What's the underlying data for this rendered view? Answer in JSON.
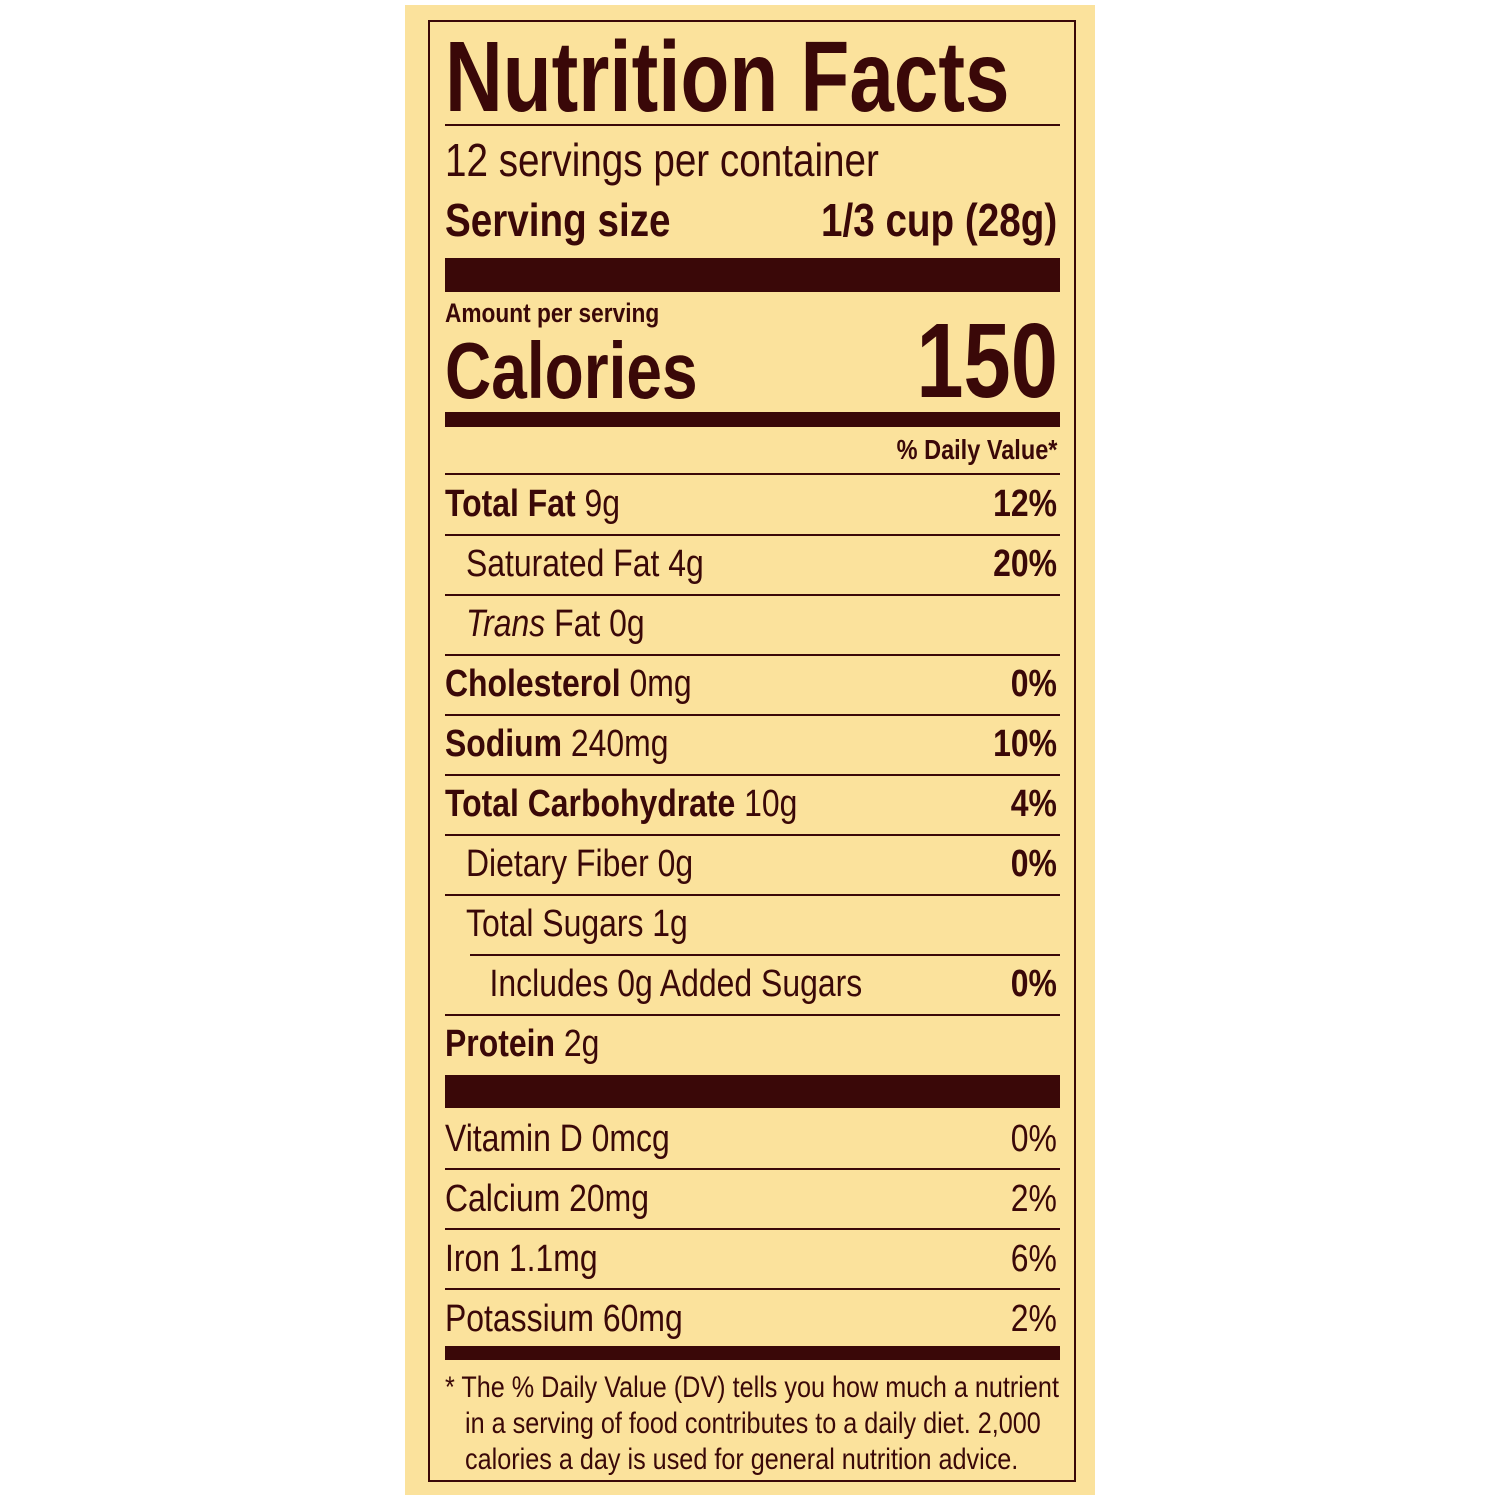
{
  "title": "Nutrition Facts",
  "servings_per_container": "12 servings per container",
  "serving_size_label": "Serving size",
  "serving_size_value": "1/3 cup (28g)",
  "amount_per_serving": "Amount per serving",
  "calories_label": "Calories",
  "calories_value": "150",
  "daily_value_header": "% Daily Value*",
  "nutrients": [
    {
      "name": "Total Fat",
      "amount": "9g",
      "dv": "12%"
    },
    {
      "name": "Saturated Fat",
      "amount": "4g",
      "dv": "20%"
    },
    {
      "name": "Trans",
      "name_suffix": "Fat",
      "amount": "0g",
      "dv": ""
    },
    {
      "name": "Cholesterol",
      "amount": "0mg",
      "dv": "0%"
    },
    {
      "name": "Sodium",
      "amount": "240mg",
      "dv": "10%"
    },
    {
      "name": "Total Carbohydrate",
      "amount": "10g",
      "dv": "4%"
    },
    {
      "name": "Dietary Fiber",
      "amount": "0g",
      "dv": "0%"
    },
    {
      "name": "Total Sugars",
      "amount": "1g",
      "dv": ""
    },
    {
      "name": "Includes 0g Added Sugars",
      "amount": "",
      "dv": "0%"
    },
    {
      "name": "Protein",
      "amount": "2g",
      "dv": ""
    }
  ],
  "vitamins": [
    {
      "name": "Vitamin D",
      "amount": "0mcg",
      "dv": "0%"
    },
    {
      "name": "Calcium",
      "amount": "20mg",
      "dv": "2%"
    },
    {
      "name": "Iron",
      "amount": "1.1mg",
      "dv": "6%"
    },
    {
      "name": "Potassium",
      "amount": "60mg",
      "dv": "2%"
    }
  ],
  "footnote_lines": [
    "* The % Daily Value (DV) tells you how much a nutrient",
    "in a serving of food contributes to a daily diet. 2,000",
    "calories a day is used for general nutrition advice."
  ],
  "colors": {
    "background": "#fbe29c",
    "text": "#3a0808"
  }
}
